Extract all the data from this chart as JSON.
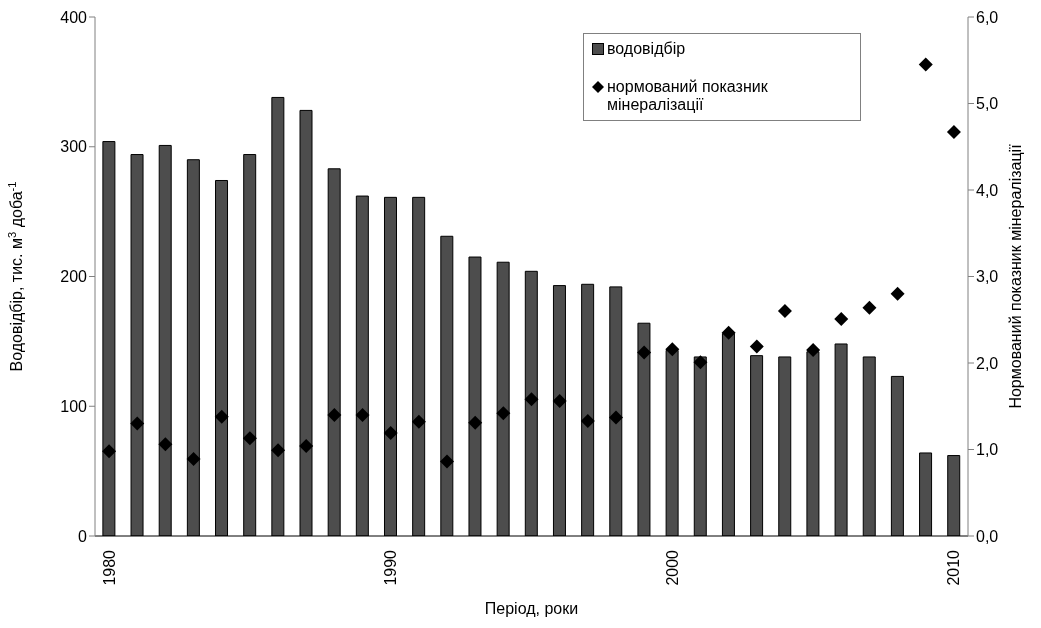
{
  "chart_data": {
    "type": "bar",
    "xlabel": "Період, роки",
    "ylabel": "Водовідбір, тис. м$^{3}$ доба$^{-1}$",
    "y2label": "Нормований показник мінералізації",
    "categories": [
      "1980",
      null,
      null,
      null,
      null,
      null,
      null,
      null,
      null,
      null,
      "1990",
      null,
      null,
      null,
      null,
      null,
      null,
      null,
      null,
      null,
      "2000",
      null,
      null,
      null,
      null,
      null,
      null,
      null,
      null,
      null,
      "2010"
    ],
    "series": [
      {
        "name": "водовідбір",
        "color": "#4d4d4d",
        "values": [
          304,
          294,
          301,
          290,
          274,
          294,
          338,
          328,
          283,
          262,
          261,
          261,
          231,
          215,
          211,
          204,
          193,
          194,
          192,
          164,
          143,
          138,
          156,
          139,
          138,
          142,
          148,
          138,
          123,
          64,
          62
        ]
      },
      {
        "name": "нормований показник мінералізації",
        "type": "scatter",
        "axis": "y2",
        "color": "#000000",
        "values": [
          0.98,
          1.3,
          1.06,
          0.89,
          1.38,
          1.13,
          0.99,
          1.04,
          1.4,
          1.4,
          1.19,
          1.32,
          0.86,
          1.31,
          1.42,
          1.58,
          1.56,
          1.33,
          1.37,
          2.12,
          2.16,
          2.01,
          2.35,
          2.19,
          2.6,
          2.15,
          2.51,
          2.64,
          2.8,
          5.45,
          4.67
        ]
      }
    ],
    "ylim": [
      0,
      400
    ],
    "yticks": [
      0,
      100,
      200,
      300,
      400
    ],
    "y2lim": [
      0,
      6
    ],
    "y2ticks": [
      {
        "value": 0,
        "label": "0,0"
      },
      {
        "value": 1,
        "label": "1,0"
      },
      {
        "value": 2,
        "label": "2,0"
      },
      {
        "value": 3,
        "label": "3,0"
      },
      {
        "value": 4,
        "label": "4,0"
      },
      {
        "value": 5,
        "label": "5,0"
      },
      {
        "value": 6,
        "label": "6,0"
      }
    ],
    "marker": "diamond",
    "legend": "top right",
    "grid": false
  }
}
